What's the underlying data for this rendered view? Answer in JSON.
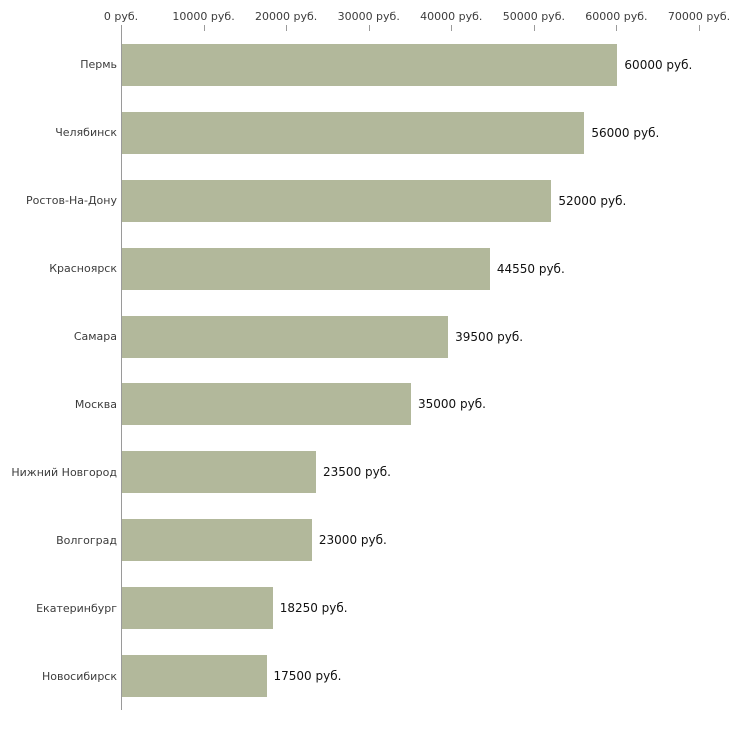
{
  "chart_data": {
    "type": "bar",
    "orientation": "horizontal",
    "title": "",
    "xlabel": "",
    "ylabel": "",
    "categories": [
      "Пермь",
      "Челябинск",
      "Ростов-На-Дону",
      "Красноярск",
      "Самара",
      "Москва",
      "Нижний Новгород",
      "Волгоград",
      "Екатеринбург",
      "Новосибирск"
    ],
    "values": [
      60000,
      56000,
      52000,
      44550,
      39500,
      35000,
      23500,
      23000,
      18250,
      17500
    ],
    "value_labels": [
      "60000 руб.",
      "56000 руб.",
      "52000 руб.",
      "44550 руб.",
      "39500 руб.",
      "35000 руб.",
      "23500 руб.",
      "23000 руб.",
      "18250 руб.",
      "17500 руб."
    ],
    "xlim": [
      0,
      70000
    ],
    "ticks": [
      {
        "value": 0,
        "label": "0 руб."
      },
      {
        "value": 10000,
        "label": "10000 руб."
      },
      {
        "value": 20000,
        "label": "20000 руб."
      },
      {
        "value": 30000,
        "label": "30000 руб."
      },
      {
        "value": 40000,
        "label": "40000 руб."
      },
      {
        "value": 50000,
        "label": "50000 руб."
      },
      {
        "value": 60000,
        "label": "60000 руб."
      },
      {
        "value": 70000,
        "label": "70000 руб."
      }
    ],
    "bar_color": "#b2b89b",
    "axis_color": "#9a9a9a",
    "grid": false,
    "legend": "none"
  }
}
